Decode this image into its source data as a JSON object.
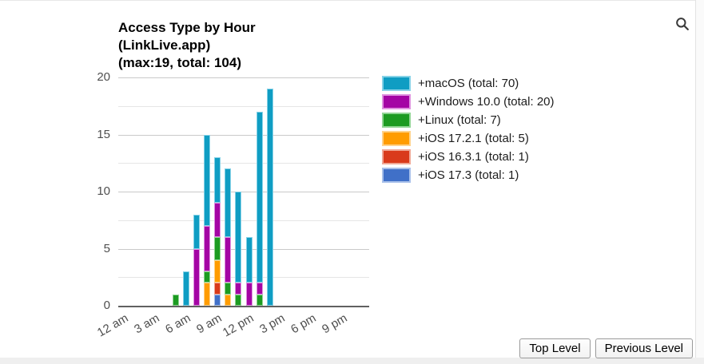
{
  "icons": {
    "search": "magnifier"
  },
  "chart_data": {
    "type": "bar",
    "stacked": true,
    "title_lines": [
      "Access Type by Hour",
      "(LinkLive.app)",
      "(max:19, total: 104)"
    ],
    "max": 19,
    "total": 104,
    "x_slots": 24,
    "x_tick_labels": [
      {
        "hour": 0,
        "label": "12 am"
      },
      {
        "hour": 3,
        "label": "3 am"
      },
      {
        "hour": 6,
        "label": "6 am"
      },
      {
        "hour": 9,
        "label": "9 am"
      },
      {
        "hour": 12,
        "label": "12 pm"
      },
      {
        "hour": 15,
        "label": "3 pm"
      },
      {
        "hour": 18,
        "label": "6 pm"
      },
      {
        "hour": 21,
        "label": "9 pm"
      }
    ],
    "y_major_ticks": [
      0,
      5,
      10,
      15,
      20
    ],
    "y_minor_ticks": [
      2.5,
      7.5,
      12.5,
      17.5
    ],
    "ylim": [
      0,
      20
    ],
    "legend_position": "right",
    "stack_order": "reverse-of-legend",
    "series": [
      {
        "name": "macOS",
        "label": "+macOS (total: 70)",
        "total": 70,
        "color": "#0f9dc3",
        "border_color": "#86d2e7",
        "values": [
          0,
          0,
          0,
          0,
          0,
          0,
          3,
          3,
          8,
          4,
          6,
          8,
          4,
          15,
          19,
          0,
          0,
          0,
          0,
          0,
          0,
          0,
          0,
          0
        ]
      },
      {
        "name": "Windows 10.0",
        "label": "+Windows 10.0 (total: 20)",
        "total": 20,
        "color": "#a405a4",
        "border_color": "#df92df",
        "values": [
          0,
          0,
          0,
          0,
          0,
          0,
          0,
          5,
          4,
          3,
          4,
          1,
          2,
          1,
          0,
          0,
          0,
          0,
          0,
          0,
          0,
          0,
          0,
          0
        ]
      },
      {
        "name": "Linux",
        "label": "+Linux (total: 7)",
        "total": 7,
        "color": "#1c9b21",
        "border_color": "#90d593",
        "values": [
          0,
          0,
          0,
          0,
          0,
          1,
          0,
          0,
          1,
          2,
          1,
          1,
          0,
          1,
          0,
          0,
          0,
          0,
          0,
          0,
          0,
          0,
          0,
          0
        ]
      },
      {
        "name": "iOS 17.2.1",
        "label": "+iOS 17.2.1 (total: 5)",
        "total": 5,
        "color": "#ff9c00",
        "border_color": "#ffd28a",
        "values": [
          0,
          0,
          0,
          0,
          0,
          0,
          0,
          0,
          2,
          2,
          1,
          0,
          0,
          0,
          0,
          0,
          0,
          0,
          0,
          0,
          0,
          0,
          0,
          0
        ]
      },
      {
        "name": "iOS 16.3.1",
        "label": "+iOS 16.3.1 (total: 1)",
        "total": 1,
        "color": "#d93a1b",
        "border_color": "#f0a795",
        "values": [
          0,
          0,
          0,
          0,
          0,
          0,
          0,
          0,
          0,
          1,
          0,
          0,
          0,
          0,
          0,
          0,
          0,
          0,
          0,
          0,
          0,
          0,
          0,
          0
        ]
      },
      {
        "name": "iOS 17.3",
        "label": "+iOS 17.3 (total: 1)",
        "total": 1,
        "color": "#4070c8",
        "border_color": "#a8c0ea",
        "values": [
          0,
          0,
          0,
          0,
          0,
          0,
          0,
          0,
          0,
          1,
          0,
          0,
          0,
          0,
          0,
          0,
          0,
          0,
          0,
          0,
          0,
          0,
          0,
          0
        ]
      }
    ]
  },
  "buttons": [
    {
      "id": "top-level",
      "label": "Top Level"
    },
    {
      "id": "previous-level",
      "label": "Previous Level"
    }
  ]
}
